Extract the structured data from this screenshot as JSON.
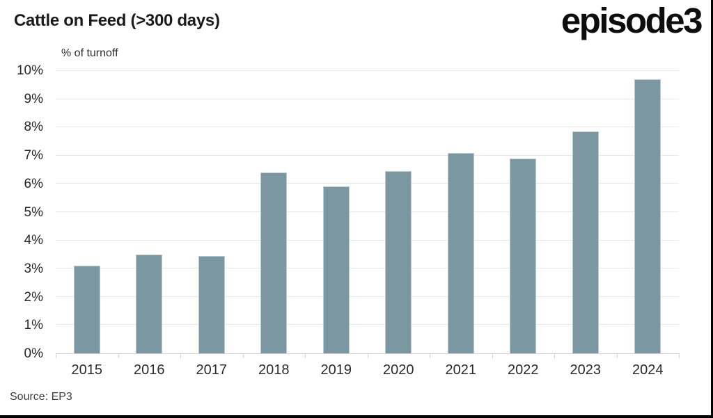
{
  "header": {
    "title": "Cattle on Feed (>300 days)",
    "logo_text": "episode3"
  },
  "footer": {
    "source": "Source: EP3"
  },
  "chart_data": {
    "type": "bar",
    "title": "Cattle on Feed (>300 days)",
    "unit_label": "% of turnoff",
    "categories": [
      "2015",
      "2016",
      "2017",
      "2018",
      "2019",
      "2020",
      "2021",
      "2022",
      "2023",
      "2024"
    ],
    "values": [
      3.1,
      3.5,
      3.45,
      6.4,
      5.9,
      6.45,
      7.1,
      6.9,
      7.85,
      9.7
    ],
    "xlabel": "",
    "ylabel": "% of turnoff",
    "ylim": [
      0,
      10
    ],
    "yticks": [
      0,
      1,
      2,
      3,
      4,
      5,
      6,
      7,
      8,
      9,
      10
    ],
    "ytick_labels": [
      "0%",
      "1%",
      "2%",
      "3%",
      "4%",
      "5%",
      "6%",
      "7%",
      "8%",
      "9%",
      "10%"
    ],
    "grid": "horizontal",
    "legend": "none",
    "source_note": "Source: EP3",
    "colors": {
      "bar": "#7b97a1",
      "bar_border": "#bccad1",
      "grid": "#e8e8e8",
      "axis": "#d2d2d2",
      "title_text": "#1b1b1b",
      "label_text": "#2b2b2b"
    }
  }
}
